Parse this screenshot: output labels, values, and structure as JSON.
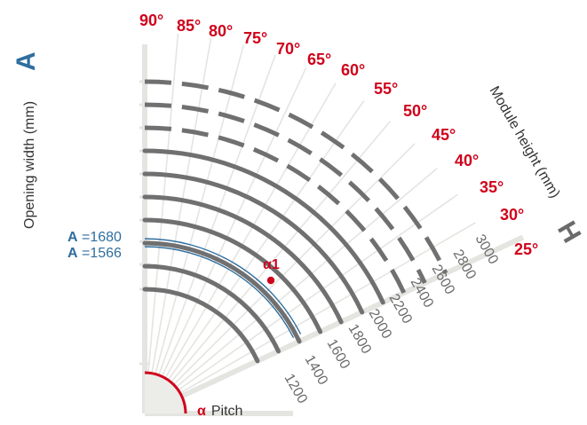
{
  "colors": {
    "arc": "#707070",
    "ray": "#e4e4e0",
    "angle": "#d0021b",
    "blue": "#2f6e9e"
  },
  "angles": {
    "values": [
      90,
      85,
      80,
      75,
      70,
      65,
      60,
      55,
      50,
      45,
      40,
      35,
      30,
      25
    ],
    "labels": [
      "90°",
      "85°",
      "80°",
      "75°",
      "70°",
      "65°",
      "60°",
      "55°",
      "50°",
      "45°",
      "40°",
      "35°",
      "30°",
      "25°"
    ]
  },
  "module_heights": {
    "solid": [
      "1200",
      "1400",
      "1600",
      "1800",
      "2000",
      "2200",
      "2400"
    ],
    "dashed": [
      "2600",
      "2800",
      "3000"
    ],
    "all_labels": [
      "1200",
      "1400",
      "1600",
      "1800",
      "2000",
      "2200",
      "2400",
      "2600",
      "2800",
      "3000"
    ]
  },
  "opening_width": {
    "axis_label": "Opening width (mm)",
    "axis_letter": "A",
    "markers": [
      {
        "prefix": "A",
        "eq": " =",
        "value": "1680"
      },
      {
        "prefix": "A",
        "eq": " =",
        "value": "1566"
      }
    ]
  },
  "module_height_axis": {
    "axis_label": "Module height (mm)",
    "axis_letter": "H"
  },
  "point": {
    "label": "α1"
  },
  "pitch": {
    "symbol": "α",
    "label": "Pitch"
  }
}
